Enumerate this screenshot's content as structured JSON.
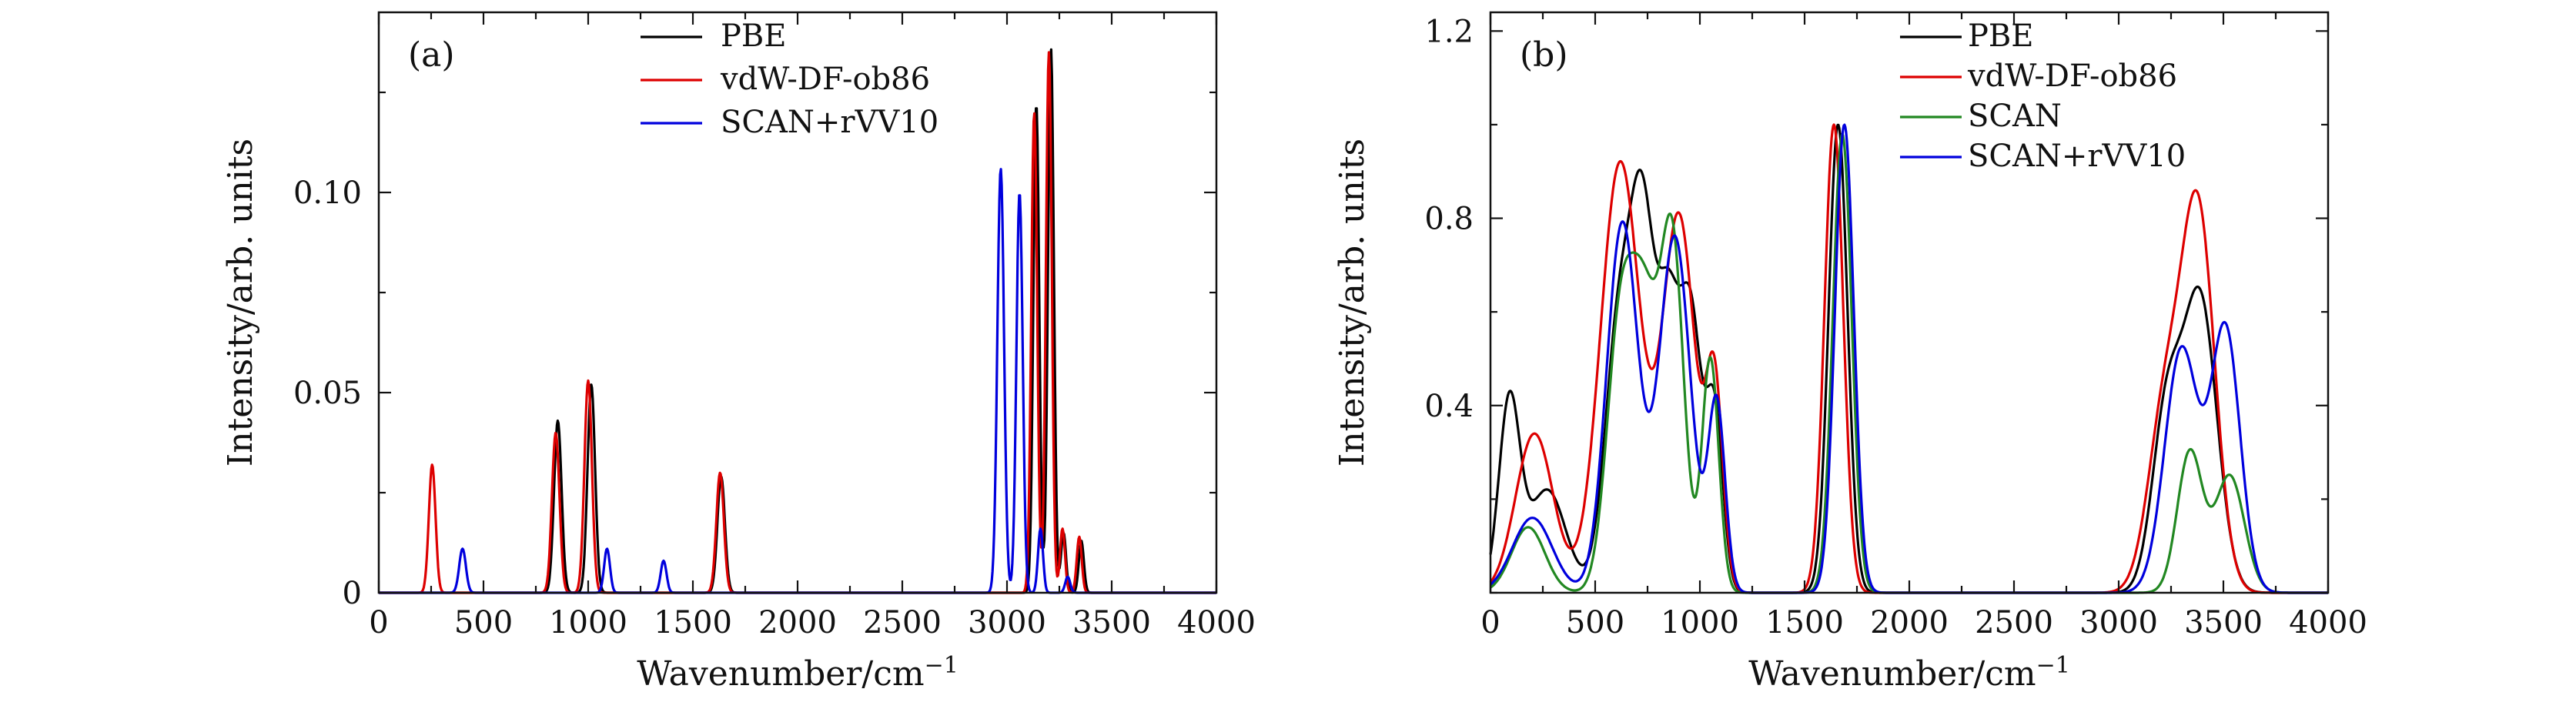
{
  "chart_data": [
    {
      "type": "line",
      "panel_label": "(a)",
      "xlabel": "Wavenumber/cm",
      "xlabel_sup": "−1",
      "ylabel": "Intensity/arb. units",
      "xlim": [
        0,
        4000
      ],
      "ylim": [
        0,
        0.145
      ],
      "xticks": [
        0,
        500,
        1000,
        1500,
        2000,
        2500,
        3000,
        3500,
        4000
      ],
      "xtick_labels": [
        "0",
        "500",
        "1000",
        "1500",
        "2000",
        "2500",
        "3000",
        "3500",
        "4000"
      ],
      "yticks": [
        0,
        0.05,
        0.1
      ],
      "ytick_labels": [
        "0",
        "0.05",
        "0.10"
      ],
      "grid": false,
      "legend_position": "top-right",
      "series": [
        {
          "name": "PBE",
          "color": "#000000",
          "peaks": [
            {
              "x": 855,
              "h": 0.043,
              "w": 18
            },
            {
              "x": 1015,
              "h": 0.052,
              "w": 18
            },
            {
              "x": 1635,
              "h": 0.029,
              "w": 18
            },
            {
              "x": 3140,
              "h": 0.122,
              "w": 14
            },
            {
              "x": 3210,
              "h": 0.136,
              "w": 14
            },
            {
              "x": 3270,
              "h": 0.015,
              "w": 12
            },
            {
              "x": 3355,
              "h": 0.013,
              "w": 12
            }
          ]
        },
        {
          "name": "vdW-DF-ob86",
          "color": "#dd0000",
          "peaks": [
            {
              "x": 255,
              "h": 0.032,
              "w": 16
            },
            {
              "x": 845,
              "h": 0.04,
              "w": 18
            },
            {
              "x": 1000,
              "h": 0.053,
              "w": 18
            },
            {
              "x": 1630,
              "h": 0.03,
              "w": 18
            },
            {
              "x": 3130,
              "h": 0.12,
              "w": 14
            },
            {
              "x": 3200,
              "h": 0.135,
              "w": 14
            },
            {
              "x": 3265,
              "h": 0.016,
              "w": 12
            },
            {
              "x": 3345,
              "h": 0.014,
              "w": 12
            }
          ]
        },
        {
          "name": "SCAN+rVV10",
          "color": "#0000dd",
          "peaks": [
            {
              "x": 400,
              "h": 0.011,
              "w": 16
            },
            {
              "x": 1090,
              "h": 0.011,
              "w": 14
            },
            {
              "x": 1360,
              "h": 0.008,
              "w": 14
            },
            {
              "x": 2970,
              "h": 0.106,
              "w": 16
            },
            {
              "x": 3060,
              "h": 0.1,
              "w": 15
            },
            {
              "x": 3160,
              "h": 0.016,
              "w": 12
            },
            {
              "x": 3290,
              "h": 0.004,
              "w": 12
            }
          ]
        }
      ]
    },
    {
      "type": "line",
      "panel_label": "(b)",
      "xlabel": "Wavenumber/cm",
      "xlabel_sup": "−1",
      "ylabel": "Intensity/arb. units",
      "xlim": [
        0,
        4000
      ],
      "ylim": [
        0,
        1.24
      ],
      "xticks": [
        0,
        500,
        1000,
        1500,
        2000,
        2500,
        3000,
        3500,
        4000
      ],
      "xtick_labels": [
        "0",
        "500",
        "1000",
        "1500",
        "2000",
        "2500",
        "3000",
        "3500",
        "4000"
      ],
      "yticks": [
        0.4,
        0.8,
        1.2
      ],
      "ytick_labels": [
        "0.4",
        "0.8",
        "1.2"
      ],
      "grid": false,
      "legend_position": "top-right",
      "series": [
        {
          "name": "PBE",
          "color": "#000000",
          "peaks": [
            {
              "x": 90,
              "h": 0.4,
              "w": 50
            },
            {
              "x": 270,
              "h": 0.22,
              "w": 90
            },
            {
              "x": 620,
              "h": 0.6,
              "w": 70
            },
            {
              "x": 730,
              "h": 0.66,
              "w": 55
            },
            {
              "x": 850,
              "h": 0.58,
              "w": 55
            },
            {
              "x": 960,
              "h": 0.55,
              "w": 50
            },
            {
              "x": 1070,
              "h": 0.38,
              "w": 40
            },
            {
              "x": 1660,
              "h": 1.0,
              "w": 45
            },
            {
              "x": 3230,
              "h": 0.38,
              "w": 70
            },
            {
              "x": 3390,
              "h": 0.62,
              "w": 80
            }
          ]
        },
        {
          "name": "vdW-DF-ob86",
          "color": "#dd0000",
          "peaks": [
            {
              "x": 210,
              "h": 0.34,
              "w": 90
            },
            {
              "x": 620,
              "h": 0.92,
              "w": 95
            },
            {
              "x": 900,
              "h": 0.8,
              "w": 80
            },
            {
              "x": 1070,
              "h": 0.42,
              "w": 40
            },
            {
              "x": 1640,
              "h": 1.0,
              "w": 45
            },
            {
              "x": 3220,
              "h": 0.38,
              "w": 80
            },
            {
              "x": 3380,
              "h": 0.8,
              "w": 80
            }
          ]
        },
        {
          "name": "SCAN",
          "color": "#228822",
          "peaks": [
            {
              "x": 180,
              "h": 0.14,
              "w": 80
            },
            {
              "x": 620,
              "h": 0.56,
              "w": 65
            },
            {
              "x": 740,
              "h": 0.55,
              "w": 65
            },
            {
              "x": 870,
              "h": 0.72,
              "w": 55
            },
            {
              "x": 1050,
              "h": 0.5,
              "w": 40
            },
            {
              "x": 1680,
              "h": 0.98,
              "w": 45
            },
            {
              "x": 3340,
              "h": 0.3,
              "w": 60
            },
            {
              "x": 3530,
              "h": 0.25,
              "w": 70
            }
          ]
        },
        {
          "name": "SCAN+rVV10",
          "color": "#0000dd",
          "peaks": [
            {
              "x": 200,
              "h": 0.16,
              "w": 95
            },
            {
              "x": 630,
              "h": 0.79,
              "w": 75
            },
            {
              "x": 880,
              "h": 0.76,
              "w": 75
            },
            {
              "x": 1080,
              "h": 0.4,
              "w": 40
            },
            {
              "x": 1690,
              "h": 1.0,
              "w": 45
            },
            {
              "x": 3300,
              "h": 0.52,
              "w": 80
            },
            {
              "x": 3510,
              "h": 0.56,
              "w": 70
            }
          ]
        }
      ]
    }
  ]
}
